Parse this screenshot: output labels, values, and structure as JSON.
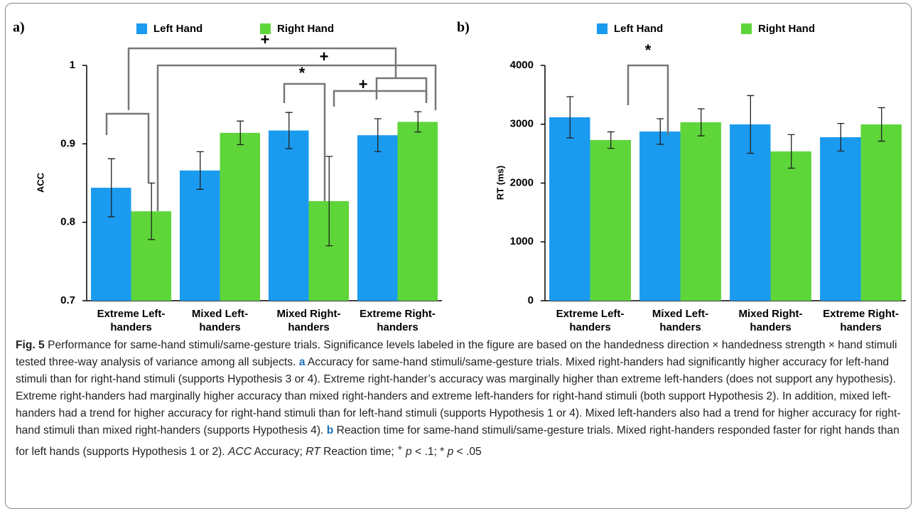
{
  "chart_data": [
    {
      "type": "bar",
      "panel_label": "a)",
      "ylabel": "ACC",
      "categories": [
        "Extreme Left-handers",
        "Mixed Left-handers",
        "Mixed Right-handers",
        "Extreme Right-handers"
      ],
      "series": [
        {
          "name": "Left Hand",
          "color": "#1a9bf0",
          "values": [
            0.844,
            0.866,
            0.917,
            0.911
          ],
          "errors": [
            0.037,
            0.024,
            0.023,
            0.021
          ]
        },
        {
          "name": "Right Hand",
          "color": "#5ed63a",
          "values": [
            0.814,
            0.914,
            0.827,
            0.928
          ],
          "errors": [
            0.036,
            0.015,
            0.057,
            0.013
          ]
        }
      ],
      "ylim": [
        0.7,
        1
      ],
      "yticks": [
        0.7,
        0.8,
        0.9,
        1
      ],
      "annotations": [
        "+",
        "+",
        "*",
        "+"
      ]
    },
    {
      "type": "bar",
      "panel_label": "b)",
      "ylabel": "RT (ms)",
      "categories": [
        "Extreme Left-handers",
        "Mixed Left-handers",
        "Mixed Right-handers",
        "Extreme Right-handers"
      ],
      "series": [
        {
          "name": "Left Hand",
          "color": "#1a9bf0",
          "values": [
            3118,
            2876,
            2997,
            2779
          ],
          "errors": [
            350,
            218,
            490,
            235
          ]
        },
        {
          "name": "Right Hand",
          "color": "#5ed63a",
          "values": [
            2731,
            3033,
            2538,
            2997
          ],
          "errors": [
            140,
            230,
            285,
            285
          ]
        }
      ],
      "ylim": [
        0,
        4000
      ],
      "yticks": [
        0,
        1000,
        2000,
        3000,
        4000
      ],
      "annotations": [
        "*"
      ]
    }
  ],
  "caption": {
    "label": "Fig. 5",
    "intro": " Performance for same-hand stimuli/same-gesture trials. Significance levels labeled in the figure are based on the handedness direction × handedness strength × hand stimuli tested three-way analysis of variance among all subjects. ",
    "a_label": "a",
    "a_text": " Accuracy for same-hand stimuli/same-gesture trials. Mixed right-handers had significantly higher accuracy for left-hand stimuli than for right-hand stimuli (supports Hypothesis 3 or 4). Extreme right-hander’s accuracy was marginally higher than extreme left-handers (does not support any hypothesis). Extreme right-handers had marginally higher accuracy than mixed right-handers and extreme left-handers for right-hand stimuli (both support Hypothesis 2). In addition, mixed left-handers had a trend for higher accuracy for right-hand stimuli than for left-hand stimuli (supports Hypothesis 1 or 4). Mixed left-handers also had a trend for higher accuracy for right-hand stimuli than mixed right-handers (supports Hypothesis 4). ",
    "b_label": "b",
    "b_text": " Reaction time for same-hand stimuli/same-gesture trials. Mixed right-handers responded faster for right hands than for left hands (supports Hypothesis 1 or 2). ",
    "footnote": [
      "ACC",
      " Accuracy; ",
      "RT",
      " Reaction time; ",
      "+",
      " ",
      "p",
      " < .1; * ",
      "p",
      " < .05"
    ]
  }
}
